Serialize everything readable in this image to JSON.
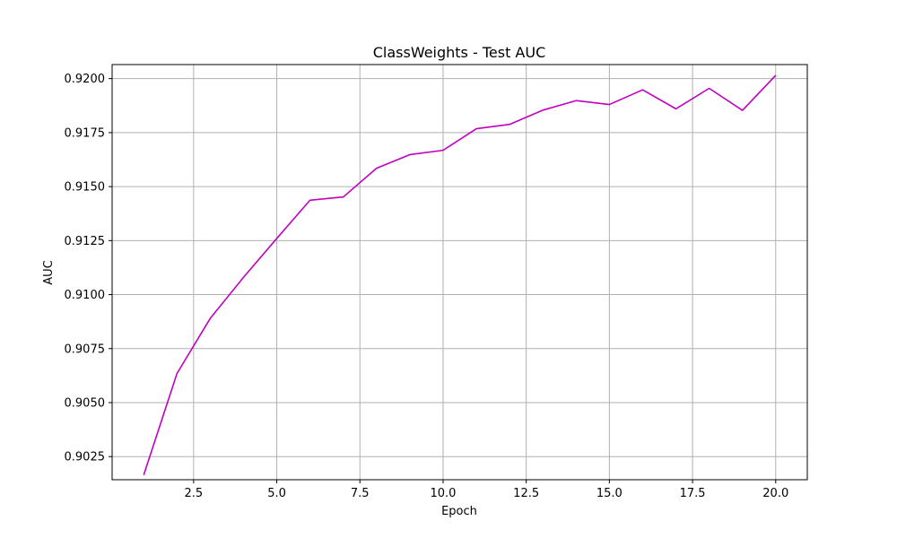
{
  "chart_data": {
    "type": "line",
    "title": "ClassWeights - Test AUC",
    "xlabel": "Epoch",
    "ylabel": "AUC",
    "xlim": [
      0.05,
      20.95
    ],
    "ylim": [
      0.90143,
      0.92065
    ],
    "x_ticks": [
      2.5,
      5.0,
      7.5,
      10.0,
      12.5,
      15.0,
      17.5,
      20.0
    ],
    "x_tick_labels": [
      "2.5",
      "5.0",
      "7.5",
      "10.0",
      "12.5",
      "15.0",
      "17.5",
      "20.0"
    ],
    "y_ticks": [
      0.9025,
      0.905,
      0.9075,
      0.91,
      0.9125,
      0.915,
      0.9175,
      0.92
    ],
    "y_tick_labels": [
      "0.9025",
      "0.9050",
      "0.9075",
      "0.9100",
      "0.9125",
      "0.9150",
      "0.9175",
      "0.9200"
    ],
    "grid": true,
    "line_color": "#bf00bf",
    "grid_color": "#b0b0b0",
    "x": [
      1,
      2,
      3,
      4,
      5,
      6,
      7,
      8,
      9,
      10,
      11,
      12,
      13,
      14,
      15,
      16,
      17,
      18,
      19,
      20
    ],
    "series": [
      {
        "values": [
          0.90165,
          0.90635,
          0.9089,
          0.9108,
          0.9126,
          0.91437,
          0.91452,
          0.91585,
          0.91648,
          0.91668,
          0.91768,
          0.91788,
          0.91854,
          0.91898,
          0.9188,
          0.91948,
          0.9186,
          0.91955,
          0.91853,
          0.92015
        ]
      }
    ]
  }
}
